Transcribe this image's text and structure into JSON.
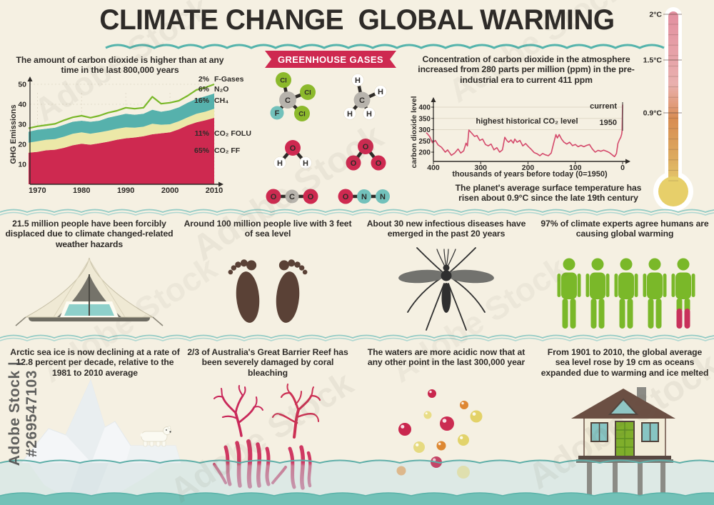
{
  "title": "CLIMATE CHANGE  GLOBAL WARMING",
  "watermark": {
    "side": "Adobe Stock | #269547103",
    "ghost": "Adobe Stock"
  },
  "colors": {
    "cream": "#f5f0e2",
    "teal": "#5fb7b0",
    "crimson": "#ce2950",
    "green": "#7ab829",
    "dark": "#2e2b28"
  },
  "gases": {
    "banner": "GREENHOUSE GASES",
    "atom_colors": {
      "C": "#b7b3ac",
      "Cl": "#8cb92c",
      "F": "#72c1bb",
      "H": "#ffffff",
      "O": "#ce2950",
      "N": "#72c1bb"
    },
    "molecules": [
      {
        "name": "CFC",
        "atoms": [
          [
            "C",
            43,
            42,
            12
          ],
          [
            "Cl",
            37,
            14,
            11
          ],
          [
            "Cl",
            71,
            31,
            11
          ],
          [
            "Cl",
            63,
            61,
            11
          ],
          [
            "F",
            28,
            60,
            9.5
          ]
        ],
        "bonds": [
          [
            0,
            1
          ],
          [
            0,
            2
          ],
          [
            0,
            3
          ],
          [
            0,
            4
          ]
        ]
      },
      {
        "name": "CH4",
        "atoms": [
          [
            "C",
            147,
            42,
            11.5
          ],
          [
            "H",
            141,
            14,
            8.5
          ],
          [
            "H",
            173,
            30,
            8.5
          ],
          [
            "H",
            130,
            61,
            8.5
          ],
          [
            "H",
            157,
            61,
            8.5
          ]
        ],
        "bonds": [
          [
            0,
            1
          ],
          [
            0,
            2
          ],
          [
            0,
            3
          ],
          [
            0,
            4
          ]
        ]
      },
      {
        "name": "H2O",
        "atoms": [
          [
            "O",
            50,
            109,
            11
          ],
          [
            "H",
            32,
            130,
            8.5
          ],
          [
            "H",
            68,
            130,
            8.5
          ]
        ],
        "bonds": [
          [
            0,
            1
          ],
          [
            0,
            2
          ]
        ]
      },
      {
        "name": "O3",
        "atoms": [
          [
            "O",
            152,
            107,
            11
          ],
          [
            "O",
            135,
            130,
            10.5
          ],
          [
            "O",
            170,
            130,
            10.5
          ]
        ],
        "bonds": [
          [
            0,
            1
          ],
          [
            0,
            2
          ]
        ]
      },
      {
        "name": "CO2",
        "atoms": [
          [
            "O",
            23,
            177,
            10.5
          ],
          [
            "C",
            49,
            177,
            9.5
          ],
          [
            "O",
            75,
            177,
            10.5
          ]
        ],
        "bonds": [
          [
            1,
            0
          ],
          [
            1,
            2
          ]
        ]
      },
      {
        "name": "N2O",
        "atoms": [
          [
            "O",
            124,
            177,
            10.5
          ],
          [
            "N",
            150,
            177,
            10
          ],
          [
            "N",
            176,
            177,
            10
          ]
        ],
        "bonds": [
          [
            0,
            1
          ],
          [
            1,
            2
          ]
        ]
      }
    ]
  },
  "thermometer": {
    "top": "2°C",
    "mid": "1.5°C",
    "low": "0.9°C"
  },
  "facts": [
    {
      "text": "21.5 million people have been forcibly displaced due to climate changed-related weather hazards"
    },
    {
      "text": "Around 100 million people live with 3 feet of sea level"
    },
    {
      "text": "About 30 new infectious diseases have emerged in the past 20 years"
    },
    {
      "text": "97% of climate experts agree humans are causing global warming"
    },
    {
      "text": "Arctic sea ice is now declining at a rate of 12.8 percent per decade, relative to the 1981 to 2010 average"
    },
    {
      "text": "2/3 of Australia's Great Barrier Reef has been severely damaged by coral bleaching"
    },
    {
      "text": "The waters are more acidic now that at any other point in the last 300,000 year"
    },
    {
      "text": "From 1901 to 2010, the global average sea level rose by 19 cm as oceans expanded due to warming and ice melted"
    }
  ],
  "chart_data": [
    {
      "type": "area",
      "title": "The amount of carbon dioxide is higher than at any time in the last 800,000 years",
      "xlabel": "",
      "ylabel": "GHG Emissions",
      "xticks": [
        1970,
        1980,
        1990,
        2000,
        2010
      ],
      "yticks": [
        10,
        20,
        30,
        40,
        50
      ],
      "ylim": [
        0,
        52
      ],
      "x": [
        1968,
        1970,
        1972,
        1974,
        1976,
        1978,
        1980,
        1982,
        1984,
        1986,
        1988,
        1990,
        1992,
        1994,
        1996,
        1998,
        2000,
        2002,
        2004,
        2006,
        2008,
        2010
      ],
      "series": [
        {
          "name": "CO₂ FF",
          "pct": "65%",
          "color": "#ce2950",
          "cum": [
            15.8,
            16.2,
            17.0,
            17.3,
            18.2,
            19.5,
            20.3,
            19.8,
            20.5,
            21.3,
            22.3,
            23.0,
            23.4,
            24.0,
            25.0,
            25.5,
            26.0,
            27.5,
            29.5,
            31.0,
            32.0,
            33.2
          ]
        },
        {
          "name": "CO₂ FOLU",
          "pct": "11%",
          "color": "#ece8a8",
          "cum": [
            20.8,
            21.5,
            22.3,
            22.6,
            23.8,
            25.3,
            26.0,
            25.3,
            26.0,
            26.8,
            27.8,
            28.5,
            28.3,
            28.8,
            30.3,
            29.8,
            30.0,
            31.5,
            33.5,
            35.3,
            36.3,
            37.8
          ]
        },
        {
          "name": "CH₄",
          "pct": "16%",
          "color": "#56b1ac",
          "cum": [
            26.3,
            27.3,
            27.8,
            28.3,
            29.8,
            31.3,
            31.8,
            31.3,
            31.8,
            33.3,
            34.3,
            35.3,
            34.8,
            35.3,
            37.3,
            36.3,
            37.0,
            38.5,
            40.8,
            42.8,
            44.0,
            45.4
          ]
        },
        {
          "name": "N₂O",
          "pct": "6%",
          "color": "#f5f0e2",
          "cum": [
            27.3,
            28.3,
            28.8,
            29.3,
            31.0,
            32.5,
            33.3,
            32.3,
            33.3,
            34.8,
            35.8,
            36.8,
            36.3,
            36.8,
            39.3,
            38.3,
            38.7,
            40.2,
            42.8,
            44.8,
            46.3,
            47.9
          ]
        },
        {
          "name": "F-Gases",
          "pct": "2%",
          "color": "#7ab829",
          "cum": [
            28.0,
            29.0,
            29.6,
            30.2,
            32.0,
            33.5,
            34.3,
            33.3,
            34.3,
            35.8,
            36.8,
            38.3,
            37.8,
            38.3,
            43.8,
            40.3,
            40.8,
            41.8,
            44.3,
            47.2,
            48.4,
            50.0
          ]
        }
      ]
    },
    {
      "type": "line",
      "title": "Concentration of carbon dioxide in the atmosphere increased from 280 parts per million (ppm) in the pre-industrial era to current 411 ppm",
      "note": "The planet's average surface temperature has risen about 0.9°C since the late 19th century",
      "xlabel": "thousands of years before today (0=1950)",
      "ylabel": "carbon dioxide level",
      "color": "#d4496b",
      "xticks": [
        400,
        300,
        200,
        100,
        0
      ],
      "yticks": [
        200,
        250,
        300,
        350,
        400
      ],
      "ylim": [
        175,
        420
      ],
      "annotations": {
        "highest": "highest historical CO₂ level",
        "current": "current",
        "y1950": "1950"
      },
      "points": [
        [
          415,
          287
        ],
        [
          408,
          270
        ],
        [
          402,
          242
        ],
        [
          396,
          252
        ],
        [
          390,
          232
        ],
        [
          383,
          222
        ],
        [
          375,
          200
        ],
        [
          370,
          210
        ],
        [
          362,
          186
        ],
        [
          355,
          196
        ],
        [
          348,
          214
        ],
        [
          342,
          196
        ],
        [
          336,
          206
        ],
        [
          331,
          240
        ],
        [
          328,
          228
        ],
        [
          325,
          298
        ],
        [
          319,
          284
        ],
        [
          313,
          270
        ],
        [
          308,
          274
        ],
        [
          302,
          252
        ],
        [
          296,
          258
        ],
        [
          290,
          234
        ],
        [
          284,
          228
        ],
        [
          278,
          236
        ],
        [
          272,
          210
        ],
        [
          266,
          220
        ],
        [
          260,
          200
        ],
        [
          254,
          210
        ],
        [
          249,
          266
        ],
        [
          245,
          252
        ],
        [
          241,
          244
        ],
        [
          236,
          254
        ],
        [
          231,
          240
        ],
        [
          228,
          258
        ],
        [
          223,
          244
        ],
        [
          217,
          252
        ],
        [
          211,
          228
        ],
        [
          205,
          238
        ],
        [
          199,
          224
        ],
        [
          193,
          212
        ],
        [
          187,
          198
        ],
        [
          181,
          193
        ],
        [
          175,
          184
        ],
        [
          169,
          194
        ],
        [
          163,
          188
        ],
        [
          157,
          184
        ],
        [
          151,
          196
        ],
        [
          146,
          238
        ],
        [
          141,
          278
        ],
        [
          138,
          263
        ],
        [
          134,
          278
        ],
        [
          129,
          258
        ],
        [
          124,
          244
        ],
        [
          118,
          236
        ],
        [
          112,
          244
        ],
        [
          106,
          229
        ],
        [
          100,
          234
        ],
        [
          94,
          224
        ],
        [
          88,
          230
        ],
        [
          82,
          224
        ],
        [
          76,
          230
        ],
        [
          70,
          234
        ],
        [
          64,
          214
        ],
        [
          58,
          200
        ],
        [
          52,
          208
        ],
        [
          46,
          204
        ],
        [
          40,
          209
        ],
        [
          34,
          204
        ],
        [
          28,
          198
        ],
        [
          22,
          188
        ],
        [
          17,
          180
        ],
        [
          13,
          194
        ],
        [
          10,
          238
        ],
        [
          7,
          254
        ],
        [
          4,
          266
        ],
        [
          2,
          280
        ],
        [
          1,
          295
        ],
        [
          0,
          411
        ]
      ]
    }
  ]
}
